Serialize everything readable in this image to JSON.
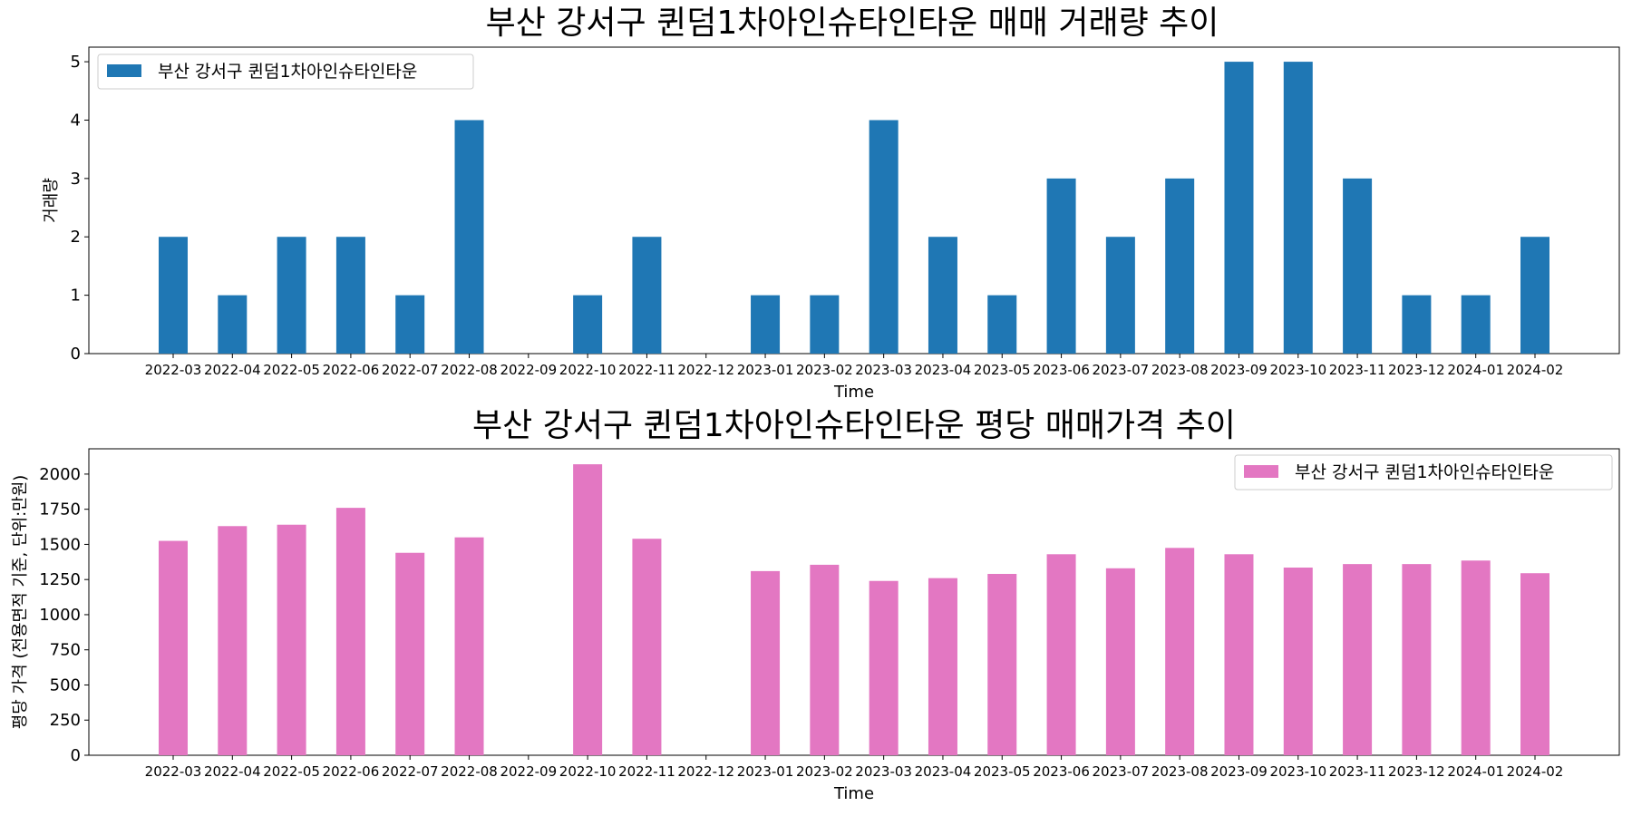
{
  "chart_data": [
    {
      "type": "bar",
      "title": "부산 강서구 퀸덤1차아인슈타인타운 매매 거래량 추이",
      "xlabel": "Time",
      "ylabel": "거래량",
      "categories": [
        "2022-03",
        "2022-04",
        "2022-05",
        "2022-06",
        "2022-07",
        "2022-08",
        "2022-09",
        "2022-10",
        "2022-11",
        "2022-12",
        "2023-01",
        "2023-02",
        "2023-03",
        "2023-04",
        "2023-05",
        "2023-06",
        "2023-07",
        "2023-08",
        "2023-09",
        "2023-10",
        "2023-11",
        "2023-12",
        "2024-01",
        "2024-02"
      ],
      "series": [
        {
          "name": "부산 강서구 퀸덤1차아인슈타인타운",
          "color": "#1f77b4",
          "values": [
            2,
            1,
            2,
            2,
            1,
            4,
            0,
            1,
            2,
            0,
            1,
            1,
            4,
            2,
            1,
            3,
            2,
            3,
            5,
            5,
            3,
            1,
            1,
            2
          ]
        }
      ],
      "ylim": [
        0,
        5.25
      ],
      "yticks": [
        0,
        1,
        2,
        3,
        4,
        5
      ],
      "legend": "top-left",
      "grid": false
    },
    {
      "type": "bar",
      "title": "부산 강서구 퀸덤1차아인슈타인타운 평당 매매가격 추이",
      "xlabel": "Time",
      "ylabel": "평당 가격 (전용면적 기준, 단위:만원)",
      "categories": [
        "2022-03",
        "2022-04",
        "2022-05",
        "2022-06",
        "2022-07",
        "2022-08",
        "2022-09",
        "2022-10",
        "2022-11",
        "2022-12",
        "2023-01",
        "2023-02",
        "2023-03",
        "2023-04",
        "2023-05",
        "2023-06",
        "2023-07",
        "2023-08",
        "2023-09",
        "2023-10",
        "2023-11",
        "2023-12",
        "2024-01",
        "2024-02"
      ],
      "series": [
        {
          "name": "부산 강서구 퀸덤1차아인슈타인타운",
          "color": "#e377c2",
          "values": [
            1525,
            1630,
            1640,
            1760,
            1440,
            1550,
            0,
            2070,
            1540,
            0,
            1310,
            1355,
            1240,
            1260,
            1290,
            1430,
            1330,
            1475,
            1430,
            1335,
            1360,
            1360,
            1385,
            1295
          ]
        }
      ],
      "ylim": [
        0,
        2180
      ],
      "yticks": [
        0,
        250,
        500,
        750,
        1000,
        1250,
        1500,
        1750,
        2000
      ],
      "legend": "top-right",
      "grid": false
    }
  ]
}
